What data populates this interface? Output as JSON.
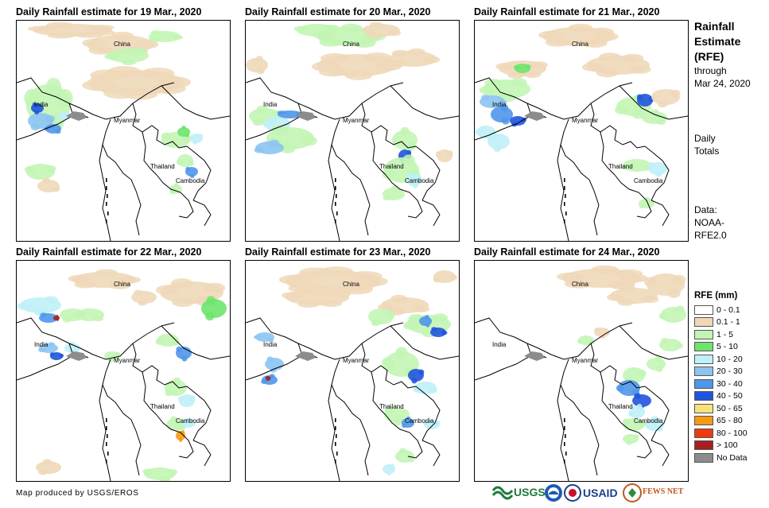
{
  "panels": [
    {
      "title": "Daily Rainfall estimate for 19 Mar., 2020"
    },
    {
      "title": "Daily Rainfall estimate for 20 Mar., 2020"
    },
    {
      "title": "Daily Rainfall estimate for 21 Mar., 2020"
    },
    {
      "title": "Daily Rainfall estimate for 22 Mar., 2020"
    },
    {
      "title": "Daily Rainfall estimate for 23 Mar., 2020"
    },
    {
      "title": "Daily Rainfall estimate for 24 Mar., 2020"
    }
  ],
  "countries": [
    "China",
    "India",
    "Myanmar",
    "Thailand",
    "Cambodia"
  ],
  "sidebar": {
    "title_lines": [
      "Rainfall",
      "Estimate",
      "(RFE)"
    ],
    "through": "through",
    "date": "Mar 24, 2020",
    "totals_lines": [
      "Daily",
      "Totals"
    ],
    "data_lines": [
      "Data:",
      "NOAA-",
      "RFE2.0"
    ]
  },
  "legend": {
    "title": "RFE (mm)",
    "items": [
      {
        "label": "0 - 0.1",
        "color": "#ffffff"
      },
      {
        "label": "0.1 - 1",
        "color": "#eed8b8"
      },
      {
        "label": "1 - 5",
        "color": "#c2f5b4"
      },
      {
        "label": "5 - 10",
        "color": "#6ee46c"
      },
      {
        "label": "10 - 20",
        "color": "#bff0f8"
      },
      {
        "label": "20 - 30",
        "color": "#8cc4f2"
      },
      {
        "label": "30 - 40",
        "color": "#4f96ea"
      },
      {
        "label": "40 - 50",
        "color": "#1f55dc"
      },
      {
        "label": "50 - 65",
        "color": "#f5e37a"
      },
      {
        "label": "65 - 80",
        "color": "#f59a12"
      },
      {
        "label": "80 - 100",
        "color": "#ee3a10"
      },
      {
        "label": "> 100",
        "color": "#a81f1f"
      },
      {
        "label": "No Data",
        "color": "#8c8c8c"
      }
    ]
  },
  "credit": "Map produced by USGS/EROS",
  "logos": [
    "USGS",
    "NOAA",
    "USAID",
    "FEWS NET"
  ]
}
